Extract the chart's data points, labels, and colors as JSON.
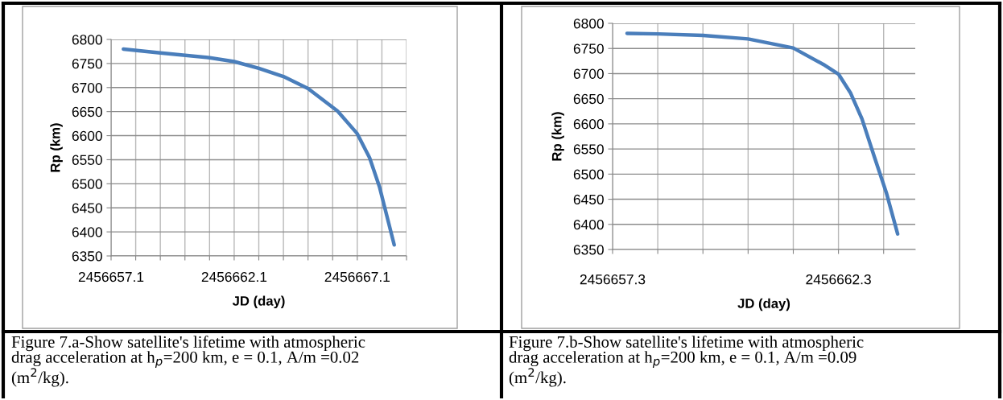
{
  "chart_data": [
    {
      "type": "line",
      "xlabel": "JD (day)",
      "ylabel": "Rp (km)",
      "grid": true,
      "line_style": "solid",
      "series": [
        {
          "color": "#4a7ebb",
          "x": [
            2456657.6,
            2456659.1,
            2456661.1,
            2456662.1,
            2456663.1,
            2456664.1,
            2456665.1,
            2456666.3,
            2456667.1,
            2456667.6,
            2456668.0,
            2456668.6
          ],
          "values": [
            6780,
            6772,
            6762,
            6754,
            6740,
            6723,
            6698,
            6651,
            6604,
            6554,
            6494,
            6373
          ]
        }
      ],
      "xlim": [
        2456657.1,
        2456669.1
      ],
      "xticks": [
        {
          "value": 2456657.1,
          "label": "2456657.1"
        },
        {
          "value": 2456658.1,
          "label": null
        },
        {
          "value": 2456659.1,
          "label": null
        },
        {
          "value": 2456660.1,
          "label": null
        },
        {
          "value": 2456661.1,
          "label": null
        },
        {
          "value": 2456662.1,
          "label": "2456662.1"
        },
        {
          "value": 2456663.1,
          "label": null
        },
        {
          "value": 2456664.1,
          "label": null
        },
        {
          "value": 2456665.1,
          "label": null
        },
        {
          "value": 2456666.1,
          "label": null
        },
        {
          "value": 2456667.1,
          "label": "2456667.1"
        },
        {
          "value": 2456668.1,
          "label": null
        },
        {
          "value": 2456669.1,
          "label": null
        }
      ],
      "ylim": [
        6350,
        6800
      ],
      "yticks": [
        6350,
        6400,
        6450,
        6500,
        6550,
        6600,
        6650,
        6700,
        6750,
        6800
      ],
      "annotations": [
        "Figure 7.a-Show satellite's lifetime with atmospheric\ndrag acceleration at h$_{p}$=200 km, e = 0.1, A/m =0.02\n(m$^{2}$/kg)."
      ]
    },
    {
      "type": "line",
      "xlabel": "JD (day)",
      "ylabel": "Rp (km)",
      "grid": true,
      "line_style": "solid",
      "series": [
        {
          "color": "#4a7ebb",
          "x": [
            2456657.62,
            2456658.3,
            2456659.3,
            2456660.3,
            2456661.3,
            2456661.97,
            2456662.3,
            2456662.57,
            2456662.82,
            2456663.1,
            2456663.36,
            2456663.61
          ],
          "values": [
            6780,
            6779,
            6776,
            6769,
            6751,
            6718,
            6699,
            6661,
            6610,
            6533,
            6463,
            6381
          ]
        }
      ],
      "xlim": [
        2456657.3,
        2456664.0
      ],
      "xticks": [
        {
          "value": 2456657.3,
          "label": "2456657.3"
        },
        {
          "value": 2456658.3,
          "label": null
        },
        {
          "value": 2456659.3,
          "label": null
        },
        {
          "value": 2456660.3,
          "label": null
        },
        {
          "value": 2456661.3,
          "label": null
        },
        {
          "value": 2456662.3,
          "label": "2456662.3"
        },
        {
          "value": 2456663.3,
          "label": null
        }
      ],
      "ylim": [
        6350,
        6800
      ],
      "yticks": [
        6350,
        6400,
        6450,
        6500,
        6550,
        6600,
        6650,
        6700,
        6750,
        6800
      ],
      "annotations": [
        "Figure 7.b-Show satellite's lifetime with atmospheric\ndrag acceleration at h$_{p}$=200 km, e = 0.1, A/m =0.09\n(m$^{2}$/kg)."
      ]
    }
  ]
}
